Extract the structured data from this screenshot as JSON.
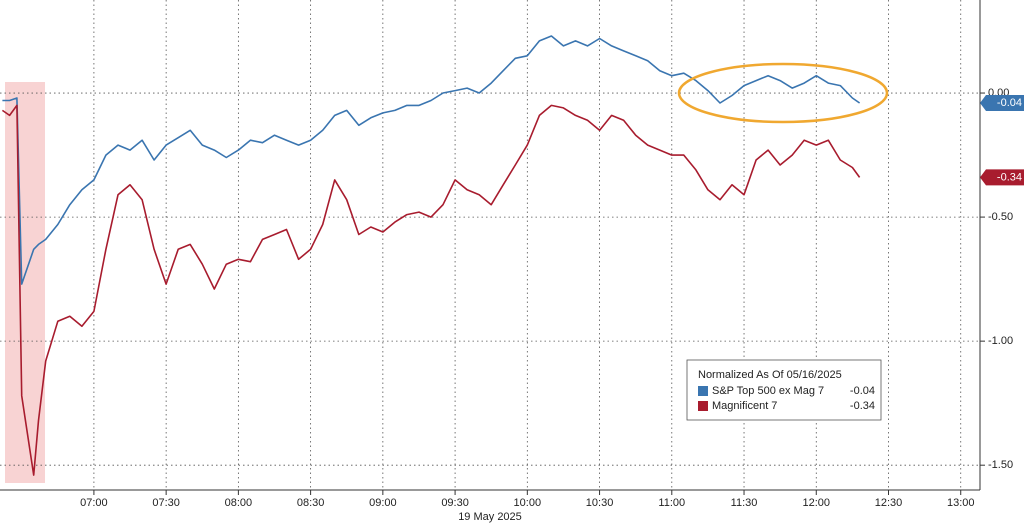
{
  "chart_data": {
    "type": "line",
    "x_label": "19 May 2025",
    "legend_title": "Normalized As Of 05/16/2025",
    "xlim": [
      "06:21",
      "13:08"
    ],
    "xticks": [
      "07:00",
      "07:30",
      "08:00",
      "08:30",
      "09:00",
      "09:30",
      "10:00",
      "10:30",
      "11:00",
      "11:30",
      "12:00",
      "12:30",
      "13:00"
    ],
    "ylim": [
      -1.6,
      0.375
    ],
    "yticks": [
      {
        "value": 0,
        "label": "0.00"
      },
      {
        "value": -0.5,
        "label": "-0.50"
      },
      {
        "value": -1,
        "label": "-1.00"
      },
      {
        "value": -1.5,
        "label": "-1.50"
      }
    ],
    "grid": true,
    "x": [
      "06:22",
      "06:25",
      "06:28",
      "06:30",
      "06:35",
      "06:37",
      "06:40",
      "06:45",
      "06:50",
      "06:55",
      "07:00",
      "07:05",
      "07:10",
      "07:15",
      "07:20",
      "07:25",
      "07:30",
      "07:35",
      "07:40",
      "07:45",
      "07:50",
      "07:55",
      "08:00",
      "08:05",
      "08:10",
      "08:15",
      "08:20",
      "08:25",
      "08:30",
      "08:35",
      "08:40",
      "08:45",
      "08:50",
      "08:55",
      "09:00",
      "09:05",
      "09:10",
      "09:15",
      "09:20",
      "09:25",
      "09:30",
      "09:35",
      "09:40",
      "09:45",
      "09:50",
      "09:55",
      "10:00",
      "10:05",
      "10:10",
      "10:15",
      "10:20",
      "10:25",
      "10:30",
      "10:35",
      "10:40",
      "10:45",
      "10:50",
      "10:55",
      "11:00",
      "11:05",
      "11:10",
      "11:15",
      "11:20",
      "11:25",
      "11:30",
      "11:35",
      "11:40",
      "11:45",
      "11:50",
      "11:55",
      "12:00",
      "12:05",
      "12:10",
      "12:15",
      "12:18"
    ],
    "series": [
      {
        "name": "S&P Top 500 ex Mag 7",
        "color": "#3a75b0",
        "end_label": "-0.04",
        "values": [
          -0.03,
          -0.03,
          -0.02,
          -0.77,
          -0.63,
          -0.61,
          -0.59,
          -0.53,
          -0.45,
          -0.39,
          -0.35,
          -0.25,
          -0.21,
          -0.23,
          -0.19,
          -0.27,
          -0.21,
          -0.18,
          -0.15,
          -0.21,
          -0.23,
          -0.26,
          -0.23,
          -0.19,
          -0.2,
          -0.17,
          -0.19,
          -0.21,
          -0.19,
          -0.15,
          -0.09,
          -0.07,
          -0.13,
          -0.1,
          -0.08,
          -0.07,
          -0.05,
          -0.05,
          -0.03,
          0,
          0.01,
          0.02,
          0,
          0.04,
          0.09,
          0.14,
          0.15,
          0.21,
          0.23,
          0.19,
          0.21,
          0.19,
          0.22,
          0.19,
          0.17,
          0.15,
          0.13,
          0.09,
          0.07,
          0.08,
          0.05,
          0.01,
          -0.04,
          -0.01,
          0.03,
          0.05,
          0.07,
          0.05,
          0.02,
          0.04,
          0.07,
          0.04,
          0.03,
          -0.02,
          -0.04
        ]
      },
      {
        "name": "Magnificent 7",
        "color": "#a81c2e",
        "end_label": "-0.34",
        "values": [
          -0.07,
          -0.09,
          -0.05,
          -1.22,
          -1.54,
          -1.32,
          -1.08,
          -0.92,
          -0.9,
          -0.94,
          -0.88,
          -0.63,
          -0.41,
          -0.37,
          -0.43,
          -0.63,
          -0.77,
          -0.63,
          -0.61,
          -0.69,
          -0.79,
          -0.69,
          -0.67,
          -0.68,
          -0.59,
          -0.57,
          -0.55,
          -0.67,
          -0.63,
          -0.53,
          -0.35,
          -0.43,
          -0.57,
          -0.54,
          -0.56,
          -0.52,
          -0.49,
          -0.48,
          -0.5,
          -0.45,
          -0.35,
          -0.39,
          -0.41,
          -0.45,
          -0.37,
          -0.29,
          -0.21,
          -0.09,
          -0.05,
          -0.06,
          -0.09,
          -0.11,
          -0.15,
          -0.09,
          -0.11,
          -0.17,
          -0.21,
          -0.23,
          -0.25,
          -0.25,
          -0.31,
          -0.39,
          -0.43,
          -0.37,
          -0.41,
          -0.27,
          -0.23,
          -0.29,
          -0.25,
          -0.19,
          -0.21,
          -0.19,
          -0.27,
          -0.3,
          -0.34
        ]
      }
    ]
  }
}
